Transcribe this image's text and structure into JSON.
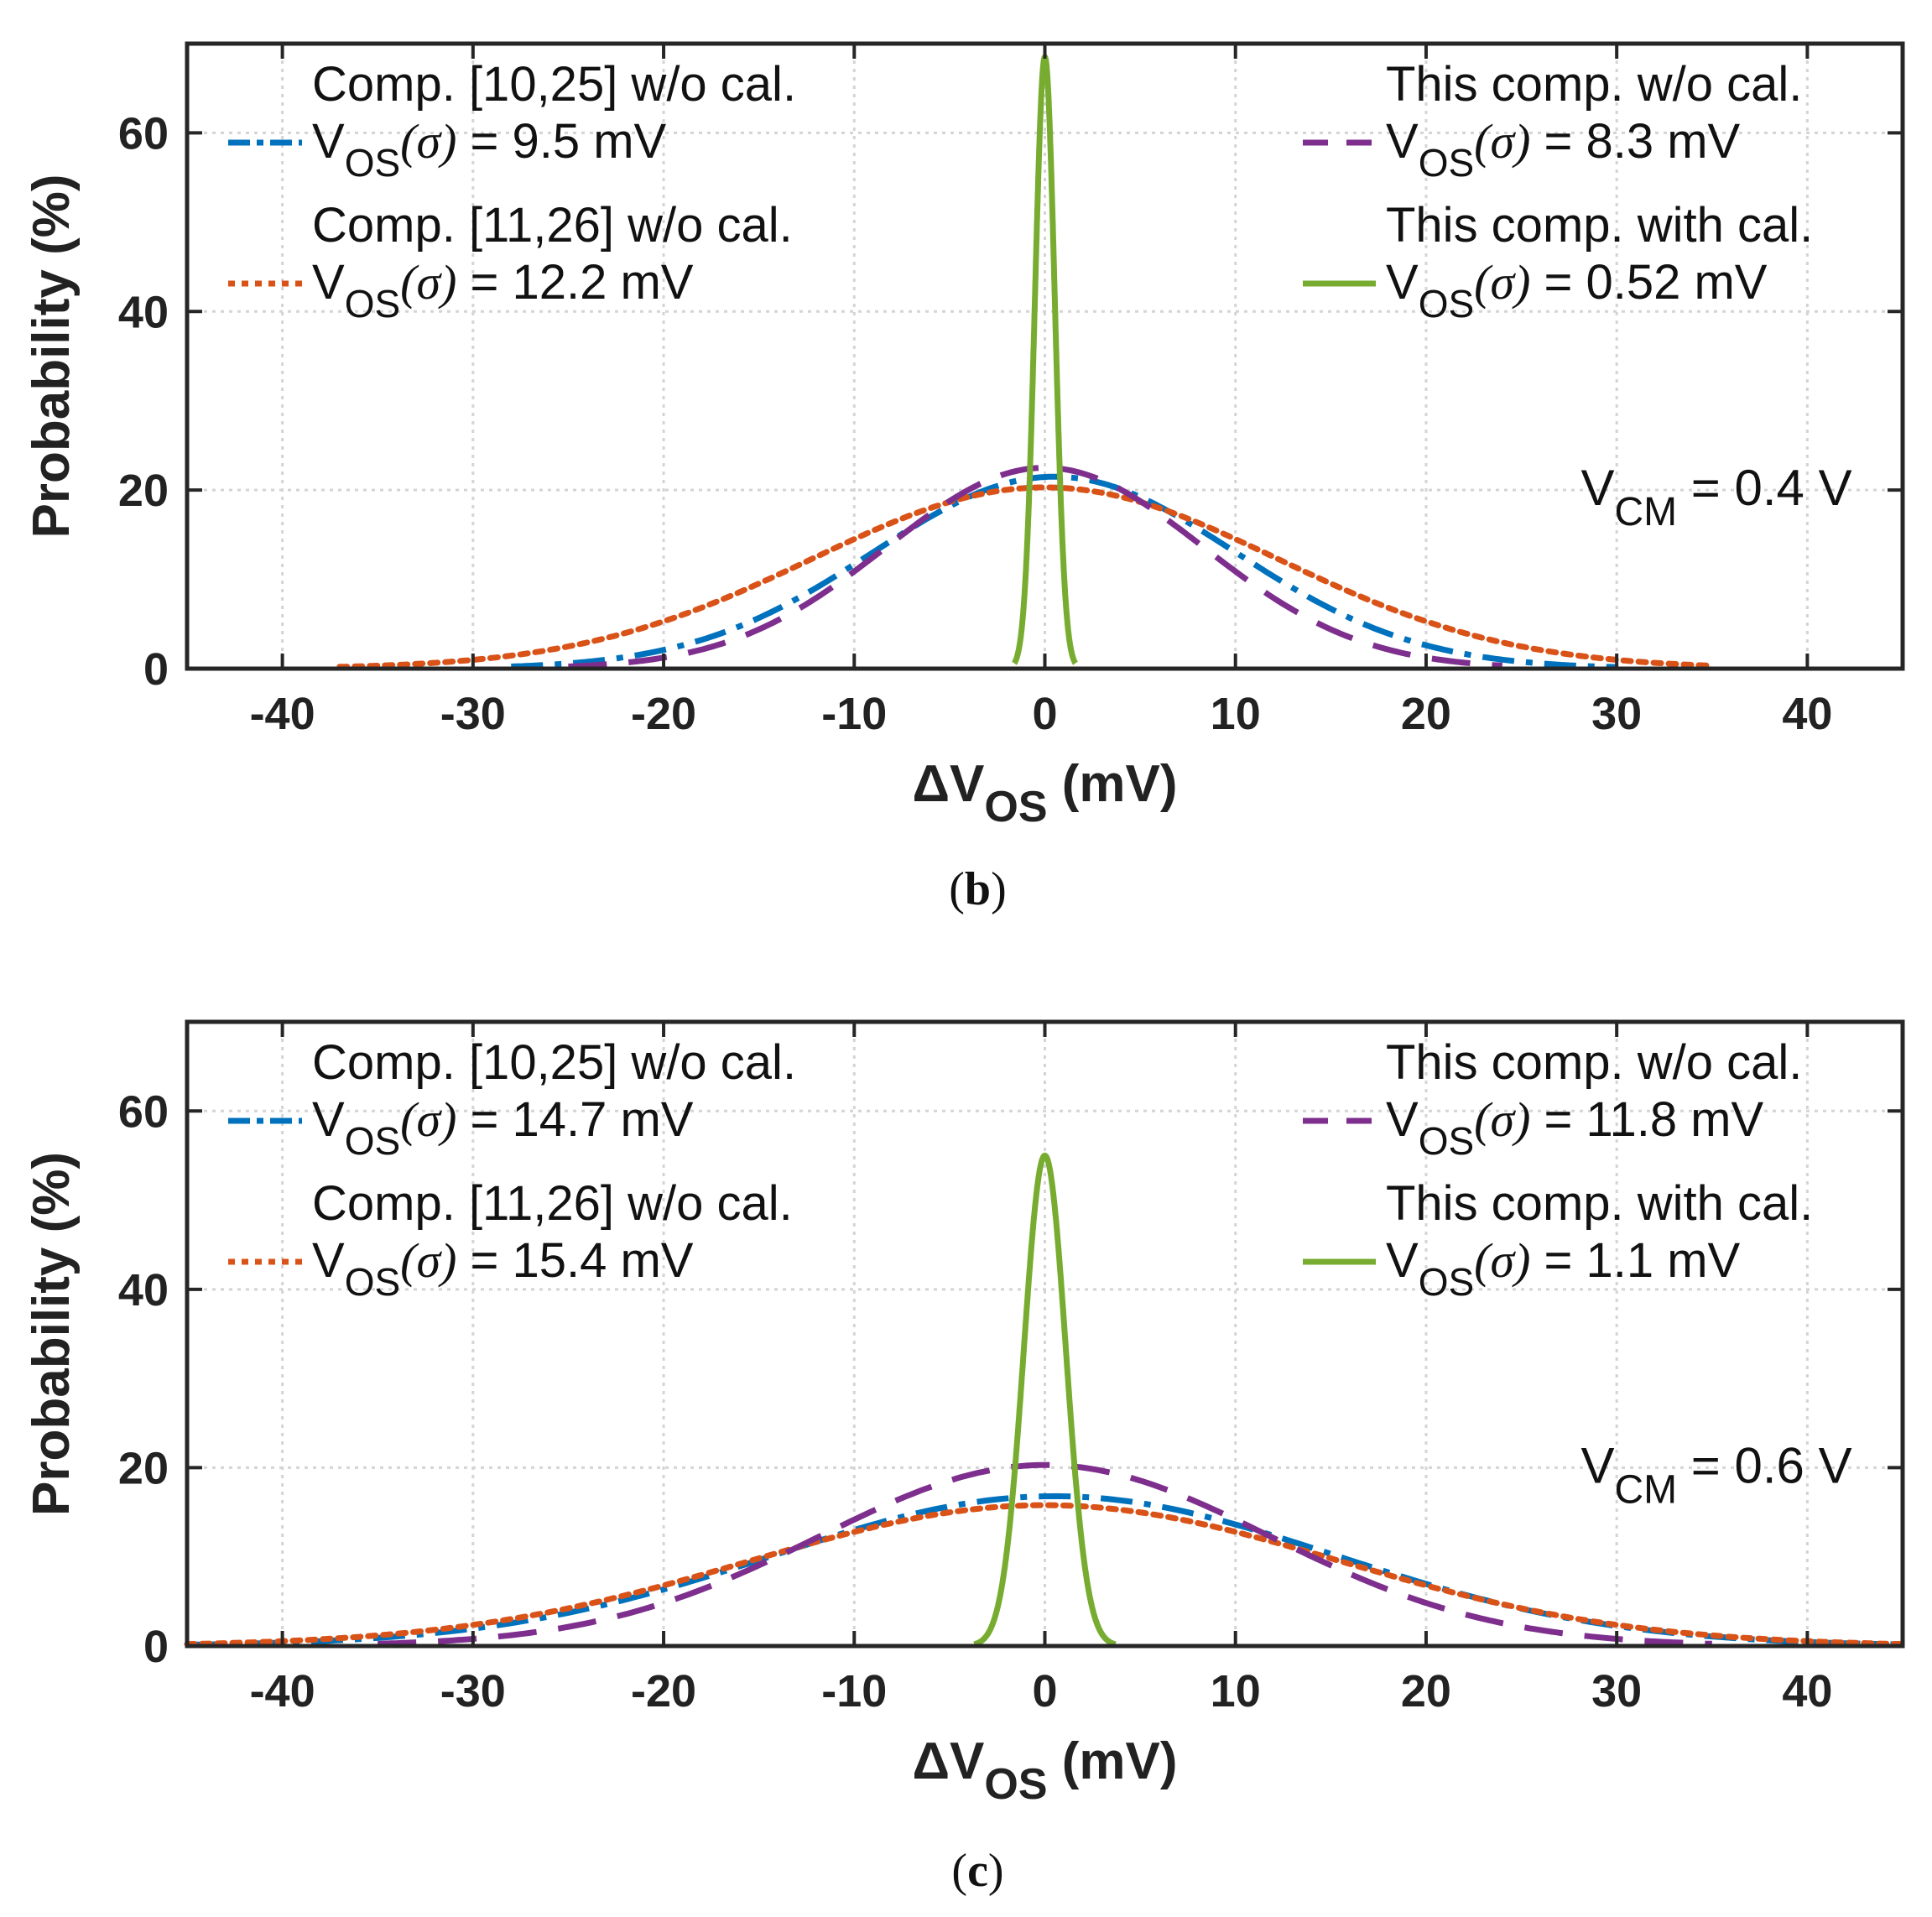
{
  "chart_data": [
    {
      "panel": "b",
      "type": "line",
      "caption_letter": "b",
      "xlabel": {
        "prefix": "ΔV",
        "sub": "OS",
        "suffix": " (mV)"
      },
      "ylabel": "Probability (%)",
      "xlim": [
        -45,
        45
      ],
      "ylim": [
        0,
        70
      ],
      "xticks": [
        -40,
        -30,
        -20,
        -10,
        0,
        10,
        20,
        30,
        40
      ],
      "yticks": [
        0,
        20,
        40,
        60
      ],
      "grid": true,
      "annotation": {
        "prefix": "V",
        "sub": "CM",
        "suffix": " = 0.4 V",
        "x": 29,
        "y": 20
      },
      "series": [
        {
          "name": "Comp. [10,25] w/o cal.",
          "sigma_label": "= 9.5 mV",
          "sigma": 9.5,
          "peak": 21.5,
          "mean": 0.5,
          "x_range": [
            -28,
            30
          ],
          "color": "#0072bd",
          "dash": "dashdot",
          "legend_pos": "left-1"
        },
        {
          "name": "Comp. [11,26] w/o cal.",
          "sigma_label": "= 12.2 mV",
          "sigma": 12.2,
          "peak": 20.3,
          "mean": 0,
          "x_range": [
            -37,
            35
          ],
          "color": "#d95319",
          "dash": "dotted",
          "legend_pos": "left-2"
        },
        {
          "name": "This comp. w/o cal.",
          "sigma_label": "= 8.3 mV",
          "sigma": 8.3,
          "peak": 22.5,
          "mean": 0,
          "x_range": [
            -25,
            24
          ],
          "color": "#7e2f8e",
          "dash": "dashed",
          "legend_pos": "right-1"
        },
        {
          "name": "This comp. with cal.",
          "sigma_label": "= 0.52 mV",
          "sigma": 0.52,
          "peak": 68.5,
          "mean": 0,
          "x_range": [
            -1.6,
            1.6
          ],
          "color": "#77ac30",
          "dash": "solid",
          "legend_pos": "right-2"
        }
      ]
    },
    {
      "panel": "c",
      "type": "line",
      "caption_letter": "c",
      "xlabel": {
        "prefix": "ΔV",
        "sub": "OS",
        "suffix": " (mV)"
      },
      "ylabel": "Probability (%)",
      "xlim": [
        -45,
        45
      ],
      "ylim": [
        0,
        70
      ],
      "xticks": [
        -40,
        -30,
        -20,
        -10,
        0,
        10,
        20,
        30,
        40
      ],
      "yticks": [
        0,
        20,
        40,
        60
      ],
      "grid": true,
      "annotation": {
        "prefix": "V",
        "sub": "CM",
        "suffix": " = 0.6 V",
        "x": 29,
        "y": 20
      },
      "series": [
        {
          "name": "Comp. [10,25] w/o cal.",
          "sigma_label": "= 14.7 mV",
          "sigma": 14.7,
          "peak": 16.8,
          "mean": 0.5,
          "x_range": [
            -45,
            45
          ],
          "color": "#0072bd",
          "dash": "dashdot",
          "legend_pos": "left-1"
        },
        {
          "name": "Comp. [11,26] w/o cal.",
          "sigma_label": "= 15.4 mV",
          "sigma": 15.4,
          "peak": 15.8,
          "mean": 0,
          "x_range": [
            -45,
            45
          ],
          "color": "#d95319",
          "dash": "dotted",
          "legend_pos": "left-2"
        },
        {
          "name": "This comp. w/o cal.",
          "sigma_label": "= 11.8 mV",
          "sigma": 11.8,
          "peak": 20.3,
          "mean": 0,
          "x_range": [
            -35,
            35
          ],
          "color": "#7e2f8e",
          "dash": "dashed",
          "legend_pos": "right-1"
        },
        {
          "name": "This comp. with cal.",
          "sigma_label": "= 1.1 mV",
          "sigma": 1.1,
          "peak": 55,
          "mean": 0,
          "x_range": [
            -3.7,
            3.7
          ],
          "color": "#77ac30",
          "dash": "solid",
          "legend_pos": "right-2"
        }
      ]
    }
  ],
  "legend_symbol": {
    "prefix": "V",
    "sub": "OS",
    "sigma": "(σ)"
  }
}
